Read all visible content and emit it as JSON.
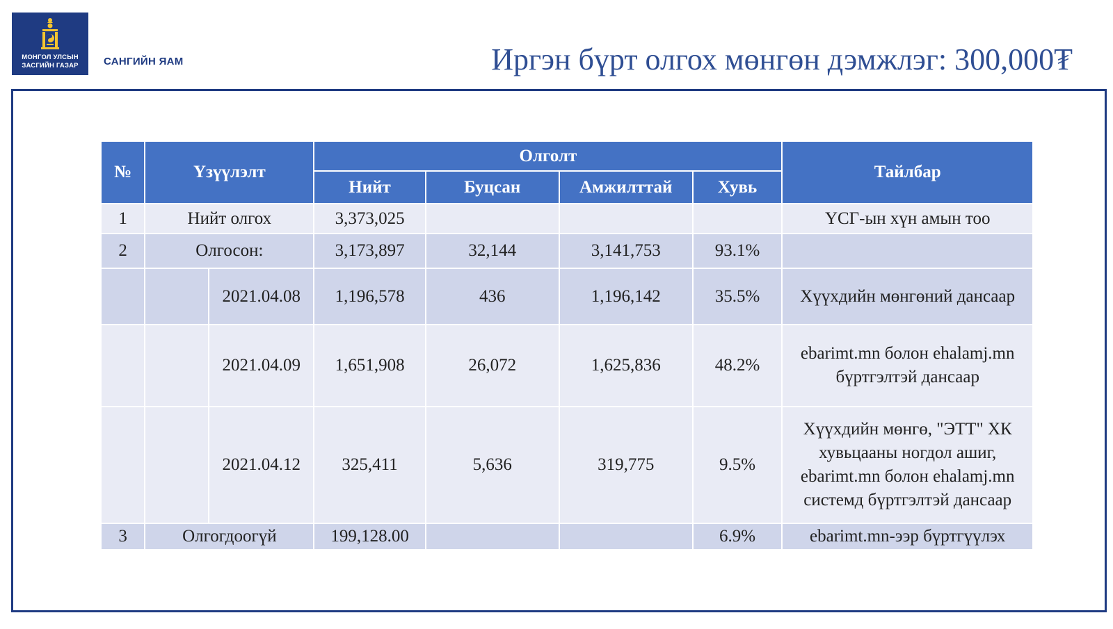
{
  "header": {
    "logo_line1": "МОНГОЛ УЛСЫН",
    "logo_line2": "ЗАСГИЙН ГАЗАР",
    "ministry": "САНГИЙН ЯАМ",
    "title": "Иргэн бүрт олгох мөнгөн дэмжлэг: 300,000₮"
  },
  "colors": {
    "brand": "#1f3b82",
    "title": "#2f4e93",
    "header_cell": "#4472c4",
    "row_light": "#e9ebf5",
    "row_dark": "#cfd5ea"
  },
  "table": {
    "headers": {
      "no": "№",
      "indicator": "Үзүүлэлт",
      "group": "Олголт",
      "total": "Нийт",
      "returned": "Буцсан",
      "success": "Амжилттай",
      "percent": "Хувь",
      "note": "Тайлбар"
    },
    "rows": [
      {
        "no": "1",
        "label": "Нийт олгох",
        "total": "3,373,025",
        "returned": "",
        "success": "",
        "percent": "",
        "note": "ҮСГ-ын хүн амын тоо"
      },
      {
        "no": "2",
        "label": "Олгосон:",
        "total": "3,173,897",
        "returned": "32,144",
        "success": "3,141,753",
        "percent": "93.1%",
        "note": ""
      },
      {
        "no": "",
        "label": "2021.04.08",
        "total": "1,196,578",
        "returned": "436",
        "success": "1,196,142",
        "percent": "35.5%",
        "note": "Хүүхдийн мөнгөний дансаар"
      },
      {
        "no": "",
        "label": "2021.04.09",
        "total": "1,651,908",
        "returned": "26,072",
        "success": "1,625,836",
        "percent": "48.2%",
        "note_lines": [
          "ebarimt.mn болон ehalamj.mn",
          "бүртгэлтэй дансаар"
        ]
      },
      {
        "no": "",
        "label": "2021.04.12",
        "total": "325,411",
        "returned": "5,636",
        "success": "319,775",
        "percent": "9.5%",
        "note_lines": [
          "Хүүхдийн мөнгө, \"ЭТТ\" ХК",
          "хувьцааны ногдол ашиг,",
          "ebarimt.mn болон ehalamj.mn",
          "системд  бүртгэлтэй дансаар"
        ]
      },
      {
        "no": "3",
        "label": "Олгогдоогүй",
        "total": "199,128.00",
        "returned": "",
        "success": "",
        "percent": "6.9%",
        "note": "ebarimt.mn-ээр бүртгүүлэх"
      }
    ]
  }
}
